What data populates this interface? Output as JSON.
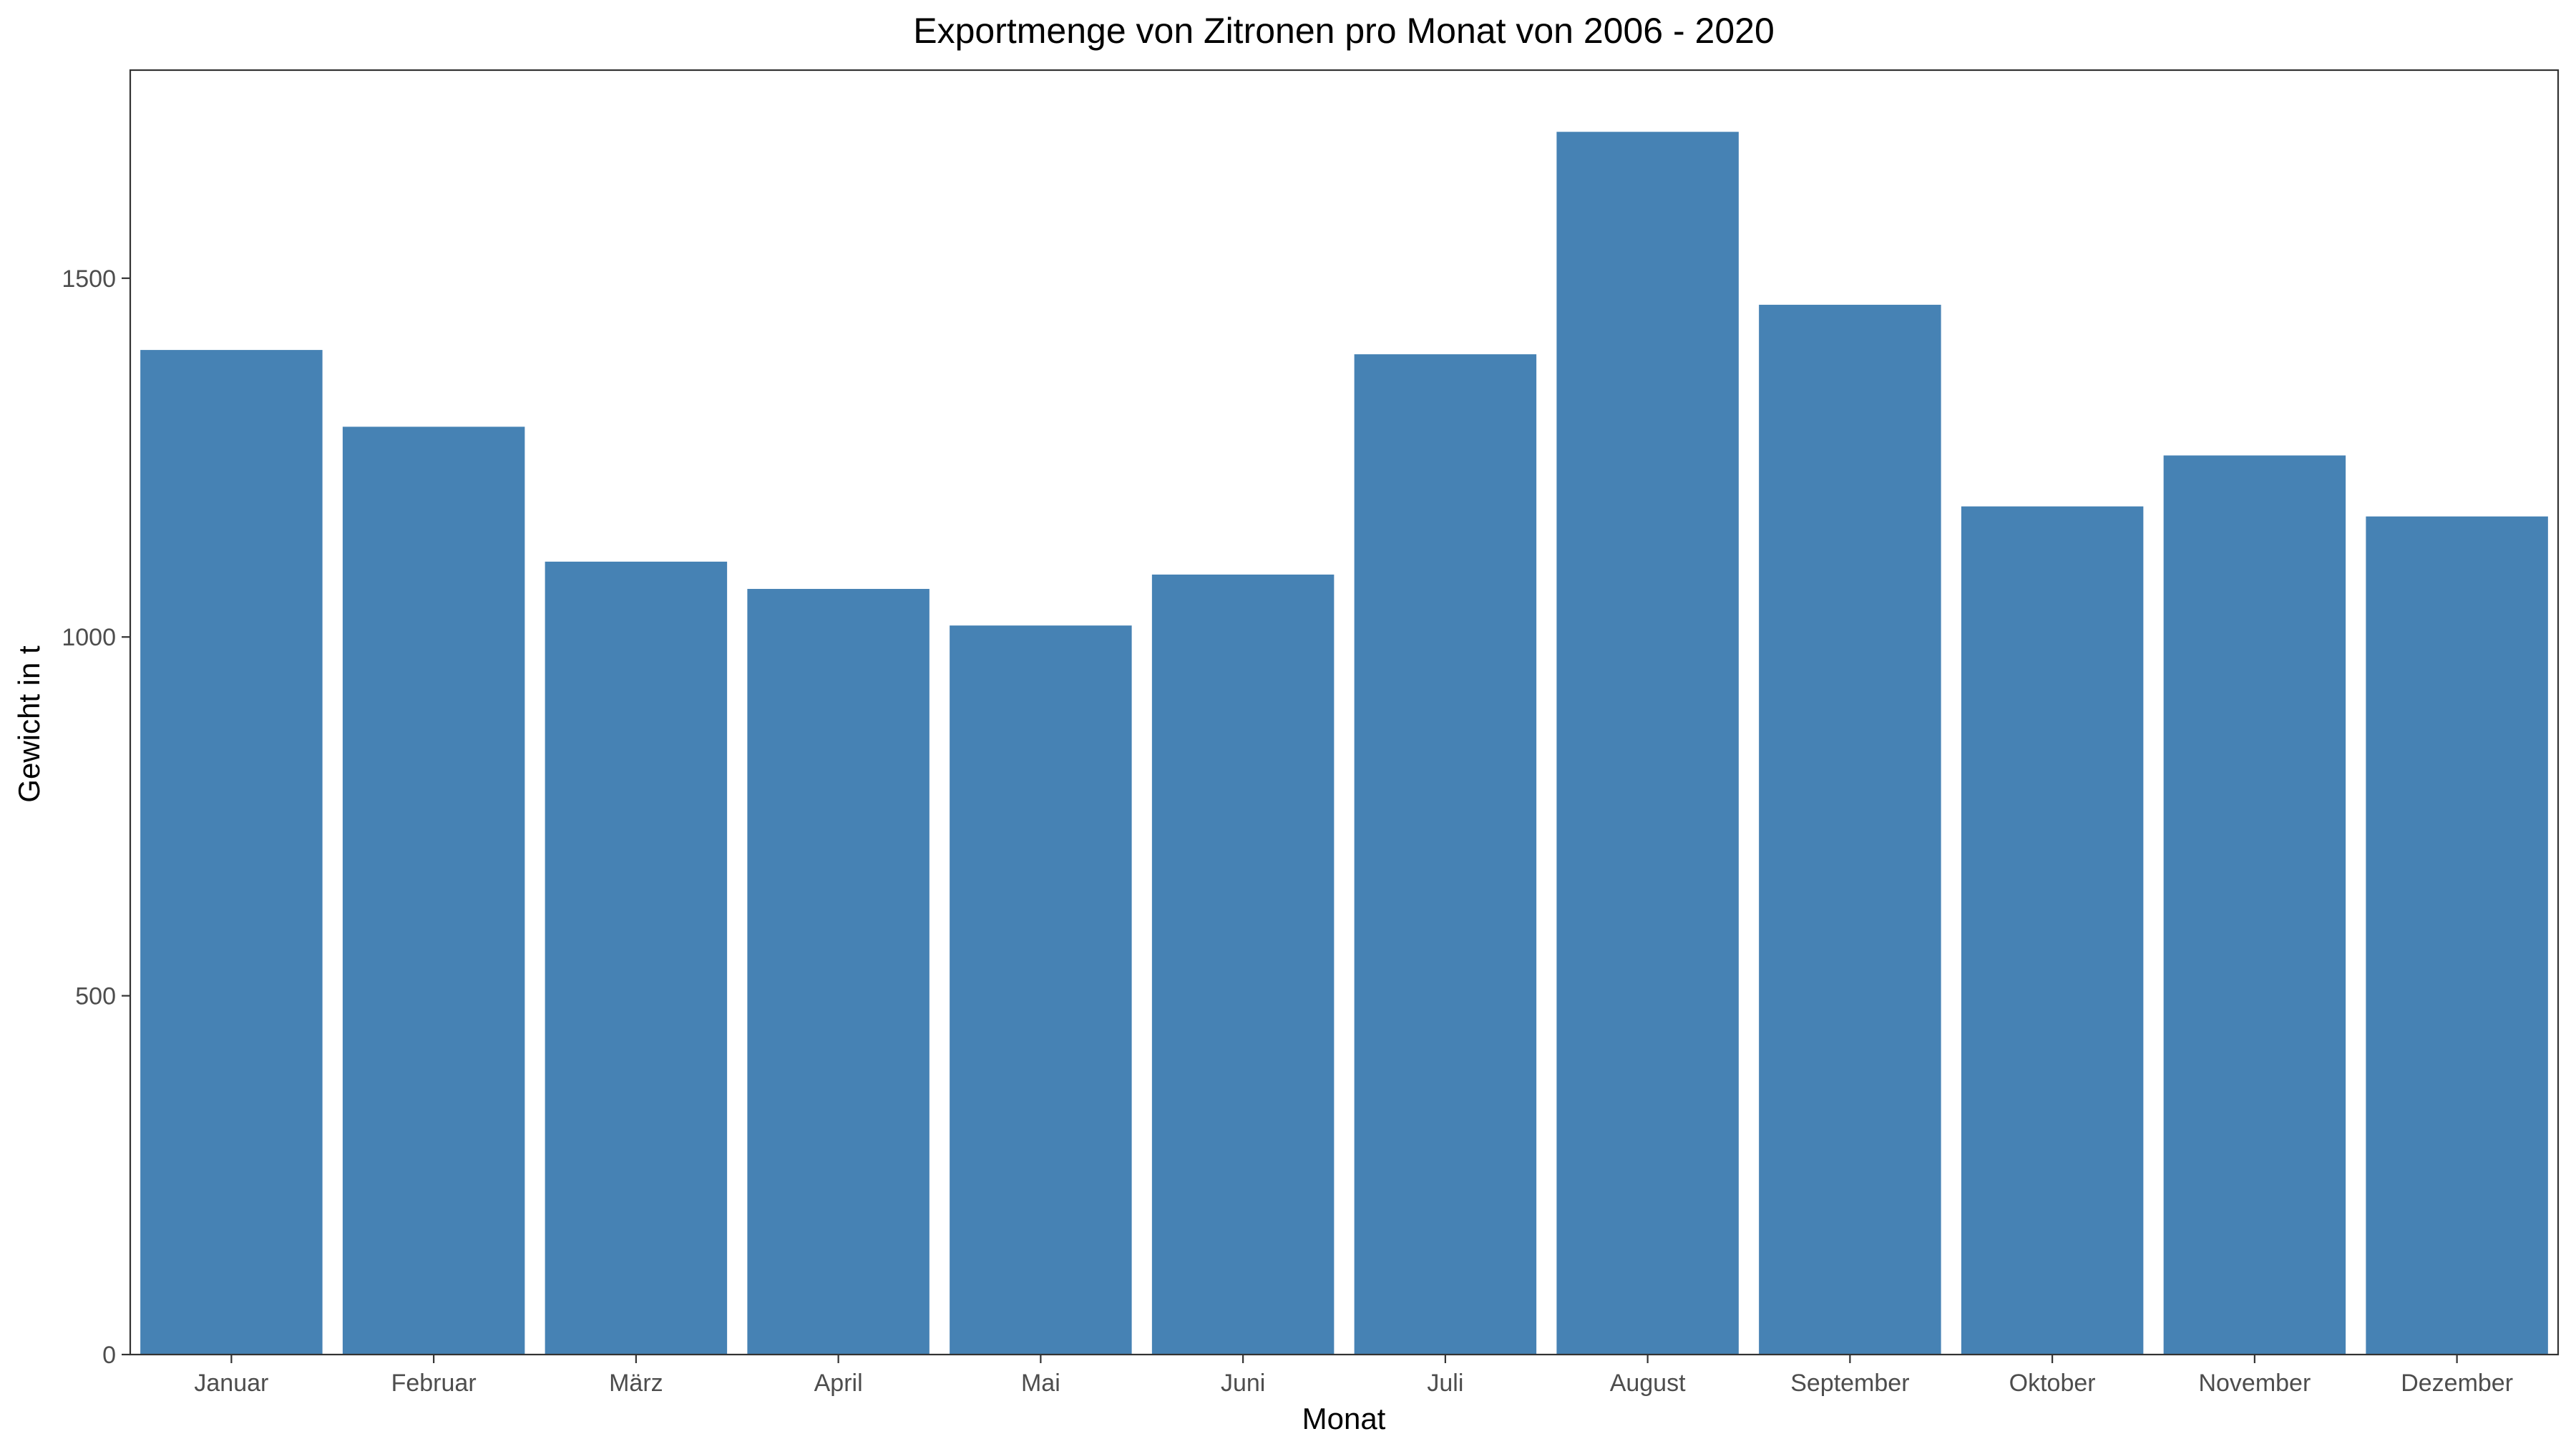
{
  "chart_data": {
    "type": "bar",
    "title": "Exportmenge von Zitronen pro Monat von 2006 - 2020",
    "xlabel": "Monat",
    "ylabel": "Gewicht in t",
    "categories": [
      "Januar",
      "Februar",
      "März",
      "April",
      "Mai",
      "Juni",
      "Juli",
      "August",
      "September",
      "Oktober",
      "November",
      "Dezember"
    ],
    "values": [
      1400,
      1293,
      1105,
      1067,
      1016,
      1087,
      1394,
      1704,
      1463,
      1182,
      1253,
      1168
    ],
    "ylim": [
      0,
      1790
    ],
    "yticks": [
      0,
      500,
      1000,
      1500
    ],
    "bar_color": "#4682b4",
    "grid": false,
    "legend": "none"
  }
}
